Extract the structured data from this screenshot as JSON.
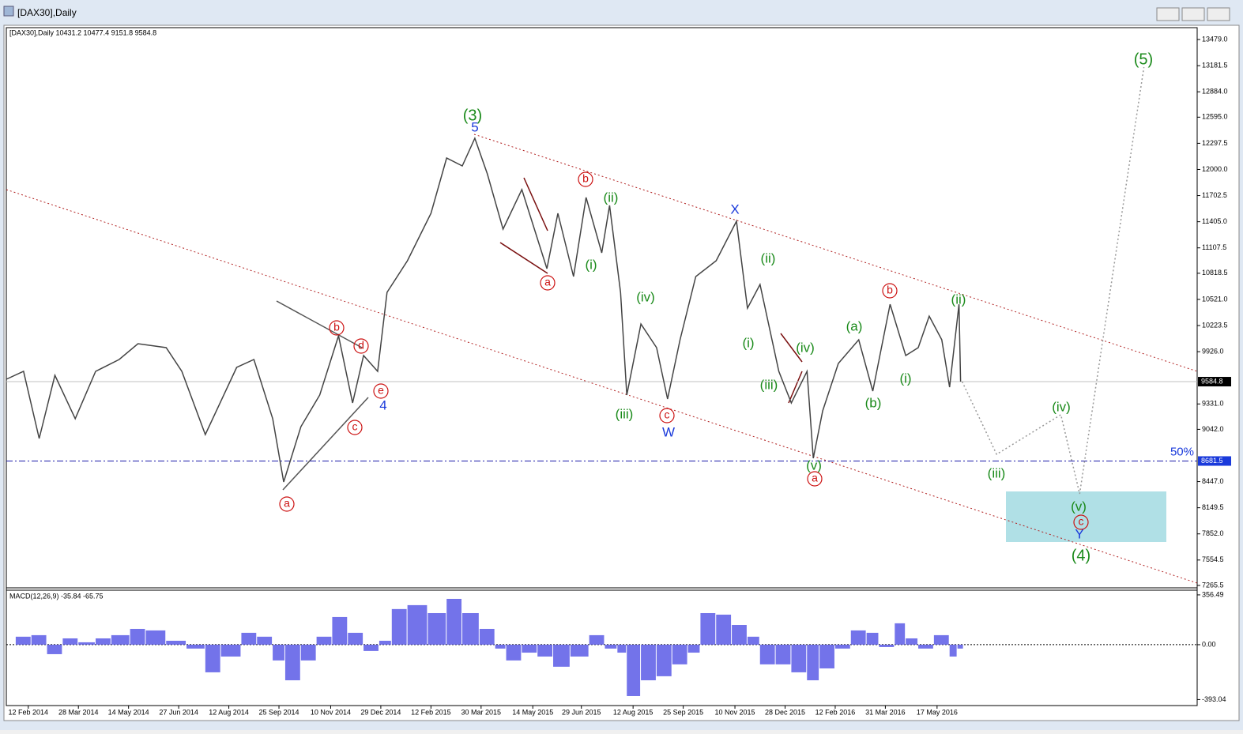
{
  "window_title": "[DAX30],Daily",
  "chart_data": {
    "type": "line",
    "title": "[DAX30],Daily",
    "subtitle": "[DAX30],Daily  10431.2 10477.4 9151.8 9584.8",
    "x": [
      0,
      11,
      21,
      31,
      44,
      57,
      72,
      84,
      102,
      112,
      127,
      147,
      158,
      170,
      177,
      188,
      200,
      212,
      221,
      228,
      237,
      243,
      256,
      271,
      281,
      291,
      299,
      307,
      317,
      329,
      345,
      352,
      362,
      370,
      380,
      385,
      392,
      396,
      405,
      415,
      422,
      430,
      440,
      453,
      466,
      473,
      481,
      493,
      501,
      511,
      515,
      521,
      531,
      544,
      553,
      564,
      574,
      582,
      589,
      597,
      602,
      608,
      609
    ],
    "series": [
      {
        "color": "#444444",
        "values": [
          9612,
          9702,
          8938,
          9657,
          9163,
          9702,
          9837,
          10017,
          9972,
          9702,
          8983,
          9747,
          9837,
          9163,
          8443,
          9073,
          9432,
          10107,
          9342,
          9882,
          9702,
          10601,
          10961,
          11501,
          12130,
          12040,
          12355,
          11950,
          11321,
          11771,
          10871,
          11501,
          10781,
          11681,
          11051,
          11591,
          10601,
          9432,
          10241,
          9972,
          9387,
          10062,
          10781,
          10961,
          11411,
          10421,
          10691,
          9702,
          9342,
          9702,
          8713,
          9252,
          9792,
          10062,
          9477,
          10466,
          9882,
          9972,
          10331,
          10062,
          9522,
          10466,
          9584.8
        ]
      }
    ],
    "projection": {
      "color": "#999999",
      "x": [
        610,
        632,
        673,
        685,
        726
      ],
      "values": [
        9585,
        8758,
        9208,
        8308,
        13164
      ]
    },
    "xlim": [
      0,
      760
    ],
    "xticks": [
      {
        "value": 14,
        "label": "12 Feb 2014"
      },
      {
        "value": 46,
        "label": "28 Mar 2014"
      },
      {
        "value": 78,
        "label": "14 May 2014"
      },
      {
        "value": 110,
        "label": "27 Jun 2014"
      },
      {
        "value": 142,
        "label": "12 Aug 2014"
      },
      {
        "value": 174,
        "label": "25 Sep 2014"
      },
      {
        "value": 207,
        "label": "10 Nov 2014"
      },
      {
        "value": 239,
        "label": "29 Dec 2014"
      },
      {
        "value": 271,
        "label": "12 Feb 2015"
      },
      {
        "value": 303,
        "label": "30 Mar 2015"
      },
      {
        "value": 336,
        "label": "14 May 2015"
      },
      {
        "value": 367,
        "label": "29 Jun 2015"
      },
      {
        "value": 400,
        "label": "12 Aug 2015"
      },
      {
        "value": 432,
        "label": "25 Sep 2015"
      },
      {
        "value": 465,
        "label": "10 Nov 2015"
      },
      {
        "value": 497,
        "label": "28 Dec 2015"
      },
      {
        "value": 529,
        "label": "12 Feb 2016"
      },
      {
        "value": 561,
        "label": "31 Mar 2016"
      },
      {
        "value": 594,
        "label": "17 May 2016"
      }
    ],
    "ylim": [
      7238,
      13614
    ],
    "yticks": [
      {
        "value": 13479,
        "label": "13479.0"
      },
      13181.5,
      {
        "value": 12884,
        "label": "12884.0"
      },
      {
        "value": 12595,
        "label": "12595.0"
      },
      12297.5,
      {
        "value": 12000,
        "label": "12000.0"
      },
      11702.5,
      {
        "value": 11405,
        "label": "11405.0"
      },
      11107.5,
      10818.5,
      {
        "value": 10521,
        "label": "10521.0"
      },
      10223.5,
      {
        "value": 9926,
        "label": "9926.0"
      },
      {
        "value": 9331,
        "label": "9331.0"
      },
      {
        "value": 9042,
        "label": "9042.0"
      },
      {
        "value": 8447,
        "label": "8447.0"
      },
      8149.5,
      {
        "value": 7852,
        "label": "7852.0"
      },
      7554.5,
      7265.5
    ],
    "price_line": 9584.8,
    "level_line": 8681.5,
    "level_label": "50%",
    "annotations": [
      {
        "text": "(3)",
        "color": "#1a8a1a"
      },
      {
        "text": "(5)",
        "color": "#1a8a1a"
      },
      {
        "text": "(4)",
        "color": "#1a8a1a"
      },
      {
        "text": "(ii)",
        "color": "#1a8a1a"
      },
      {
        "text": "(i)",
        "color": "#1a8a1a"
      },
      {
        "text": "(iv)",
        "color": "#1a8a1a"
      },
      {
        "text": "(iii)",
        "color": "#1a8a1a"
      },
      {
        "text": "(ii)",
        "color": "#1a8a1a"
      },
      {
        "text": "(i)",
        "color": "#1a8a1a"
      },
      {
        "text": "(iv)",
        "color": "#1a8a1a"
      },
      {
        "text": "(iii)",
        "color": "#1a8a1a"
      },
      {
        "text": "(v)",
        "color": "#1a8a1a"
      },
      {
        "text": "(a)",
        "color": "#1a8a1a"
      },
      {
        "text": "(b)",
        "color": "#1a8a1a"
      },
      {
        "text": "(i)",
        "color": "#1a8a1a"
      },
      {
        "text": "(ii)",
        "color": "#1a8a1a"
      },
      {
        "text": "(iv)",
        "color": "#1a8a1a"
      },
      {
        "text": "(iii)",
        "color": "#1a8a1a"
      },
      {
        "text": "(v)",
        "color": "#1a8a1a"
      },
      {
        "text": "5",
        "color": "#1a3adb"
      },
      {
        "text": "4",
        "color": "#1a3adb"
      },
      {
        "text": "X",
        "color": "#1a3adb"
      },
      {
        "text": "W",
        "color": "#1a3adb"
      },
      {
        "text": "Y",
        "color": "#1a3adb"
      },
      {
        "text": "a",
        "color": "#cc1111",
        "circled": true
      },
      {
        "text": "b",
        "color": "#cc1111",
        "circled": true
      },
      {
        "text": "c",
        "color": "#cc1111",
        "circled": true
      },
      {
        "text": "d",
        "color": "#cc1111",
        "circled": true
      },
      {
        "text": "e",
        "color": "#cc1111",
        "circled": true
      },
      {
        "text": "a",
        "color": "#cc1111",
        "circled": true
      },
      {
        "text": "b",
        "color": "#cc1111",
        "circled": true
      },
      {
        "text": "c",
        "color": "#cc1111",
        "circled": true
      },
      {
        "text": "a",
        "color": "#cc1111",
        "circled": true
      },
      {
        "text": "b",
        "color": "#cc1111",
        "circled": true
      },
      {
        "text": "c",
        "color": "#cc1111",
        "circled": true
      }
    ],
    "macd": {
      "title": "MACD(12,26,9) -35.84 -65.75",
      "color": "#5a5ae6",
      "x": [
        6,
        16,
        26,
        36,
        46,
        57,
        67,
        79,
        89,
        102,
        115,
        127,
        137,
        150,
        160,
        170,
        178,
        188,
        198,
        208,
        218,
        228,
        238,
        246,
        256,
        269,
        281,
        291,
        302,
        312,
        319,
        329,
        339,
        349,
        360,
        372,
        382,
        390,
        396,
        405,
        415,
        425,
        435,
        443,
        453,
        463,
        473,
        481,
        491,
        501,
        511,
        519,
        529,
        539,
        549,
        557,
        567,
        574,
        582,
        592,
        602,
        607
      ],
      "values": [
        57,
        68,
        -68,
        45,
        17,
        45,
        68,
        113,
        102,
        28,
        -28,
        -198,
        -85,
        85,
        57,
        -113,
        -255,
        -113,
        57,
        198,
        85,
        -45,
        28,
        255,
        283,
        226,
        328,
        226,
        113,
        -28,
        -113,
        -57,
        -85,
        -158,
        -85,
        68,
        -28,
        -57,
        -368,
        -255,
        -226,
        -141,
        -57,
        226,
        215,
        141,
        57,
        -141,
        -141,
        -198,
        -255,
        -170,
        -28,
        102,
        85,
        -17,
        153,
        45,
        -28,
        68,
        -85,
        -28
      ],
      "ylim": [
        -436,
        390
      ],
      "yticks": [
        356.49,
        {
          "value": 0,
          "label": "0.00"
        },
        -393.04
      ]
    }
  }
}
